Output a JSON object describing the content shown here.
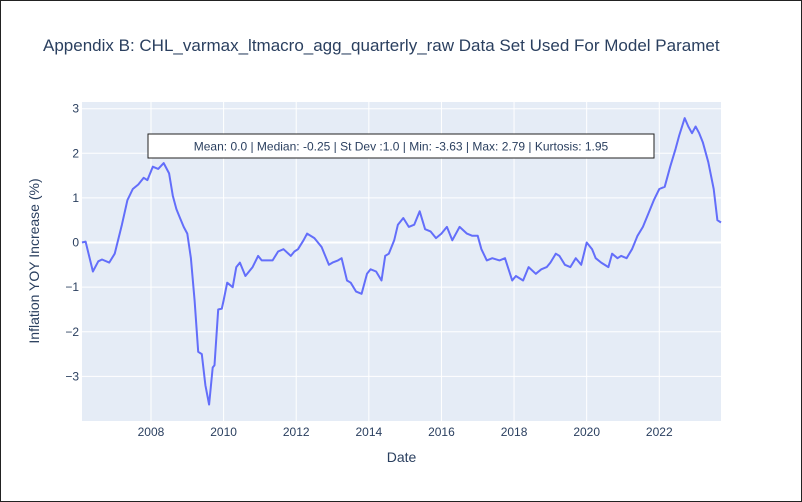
{
  "chart_data": {
    "type": "line",
    "title": "Appendix B: CHL_varmax_ltmacro_agg_quarterly_raw Data Set Used For Model Paramet",
    "xlabel": "Date",
    "ylabel": "Inflation YOY Increase (%)",
    "xlim": [
      2006.1,
      2023.7
    ],
    "ylim": [
      -4.0,
      3.15
    ],
    "x_ticks": [
      2008,
      2010,
      2012,
      2014,
      2016,
      2018,
      2020,
      2022
    ],
    "y_ticks": [
      -3,
      -2,
      -1,
      0,
      1,
      2,
      3
    ],
    "grid": true,
    "annotation": "Mean: 0.0 | Median: -0.25 | St Dev :1.0 | Min: -3.63 | Max: 2.79 | Kurtosis: 1.95",
    "series": [
      {
        "color": "#636efa",
        "x": [
          2006.1,
          2006.2,
          2006.4,
          2006.55,
          2006.65,
          2006.85,
          2007.0,
          2007.2,
          2007.35,
          2007.5,
          2007.65,
          2007.8,
          2007.9,
          2008.05,
          2008.2,
          2008.35,
          2008.5,
          2008.6,
          2008.7,
          2008.8,
          2008.9,
          2009.0,
          2009.1,
          2009.2,
          2009.3,
          2009.4,
          2009.5,
          2009.6,
          2009.7,
          2009.75,
          2009.85,
          2009.95,
          2010.0,
          2010.1,
          2010.25,
          2010.35,
          2010.45,
          2010.6,
          2010.8,
          2010.95,
          2011.05,
          2011.15,
          2011.35,
          2011.5,
          2011.65,
          2011.85,
          2011.95,
          2012.05,
          2012.2,
          2012.3,
          2012.5,
          2012.7,
          2012.9,
          2013.0,
          2013.15,
          2013.25,
          2013.4,
          2013.5,
          2013.65,
          2013.8,
          2013.95,
          2014.05,
          2014.2,
          2014.35,
          2014.45,
          2014.55,
          2014.7,
          2014.8,
          2014.95,
          2015.1,
          2015.25,
          2015.4,
          2015.55,
          2015.7,
          2015.85,
          2016.0,
          2016.15,
          2016.3,
          2016.5,
          2016.7,
          2016.85,
          2017.0,
          2017.1,
          2017.25,
          2017.4,
          2017.6,
          2017.75,
          2017.95,
          2018.05,
          2018.25,
          2018.4,
          2018.6,
          2018.75,
          2018.9,
          2019.0,
          2019.15,
          2019.25,
          2019.4,
          2019.55,
          2019.7,
          2019.85,
          2020.0,
          2020.15,
          2020.25,
          2020.4,
          2020.6,
          2020.7,
          2020.85,
          2020.95,
          2021.1,
          2021.25,
          2021.4,
          2021.55,
          2021.7,
          2021.85,
          2022.0,
          2022.15,
          2022.3,
          2022.45,
          2022.55,
          2022.7,
          2022.8,
          2022.9,
          2023.0,
          2023.1,
          2023.2,
          2023.35,
          2023.5,
          2023.6,
          2023.7
        ],
        "values": [
          0.0,
          0.02,
          -0.65,
          -0.42,
          -0.38,
          -0.45,
          -0.25,
          0.4,
          0.95,
          1.2,
          1.3,
          1.45,
          1.4,
          1.7,
          1.65,
          1.78,
          1.55,
          1.05,
          0.75,
          0.55,
          0.35,
          0.2,
          -0.35,
          -1.3,
          -2.45,
          -2.5,
          -3.2,
          -3.63,
          -2.8,
          -2.75,
          -1.5,
          -1.48,
          -1.3,
          -0.9,
          -1.0,
          -0.55,
          -0.45,
          -0.75,
          -0.55,
          -0.3,
          -0.4,
          -0.4,
          -0.4,
          -0.2,
          -0.15,
          -0.3,
          -0.2,
          -0.15,
          0.05,
          0.2,
          0.1,
          -0.1,
          -0.5,
          -0.45,
          -0.4,
          -0.35,
          -0.85,
          -0.9,
          -1.1,
          -1.15,
          -0.7,
          -0.6,
          -0.65,
          -0.85,
          -0.3,
          -0.25,
          0.05,
          0.4,
          0.55,
          0.35,
          0.4,
          0.7,
          0.3,
          0.25,
          0.1,
          0.2,
          0.35,
          0.05,
          0.35,
          0.2,
          0.15,
          0.15,
          -0.15,
          -0.4,
          -0.35,
          -0.4,
          -0.35,
          -0.85,
          -0.75,
          -0.85,
          -0.55,
          -0.7,
          -0.6,
          -0.55,
          -0.45,
          -0.25,
          -0.3,
          -0.5,
          -0.55,
          -0.35,
          -0.5,
          0.0,
          -0.15,
          -0.35,
          -0.45,
          -0.55,
          -0.25,
          -0.35,
          -0.3,
          -0.35,
          -0.15,
          0.15,
          0.35,
          0.65,
          0.95,
          1.2,
          1.25,
          1.7,
          2.1,
          2.4,
          2.79,
          2.6,
          2.45,
          2.6,
          2.45,
          2.25,
          1.8,
          1.2,
          0.5,
          0.45
        ]
      }
    ]
  }
}
